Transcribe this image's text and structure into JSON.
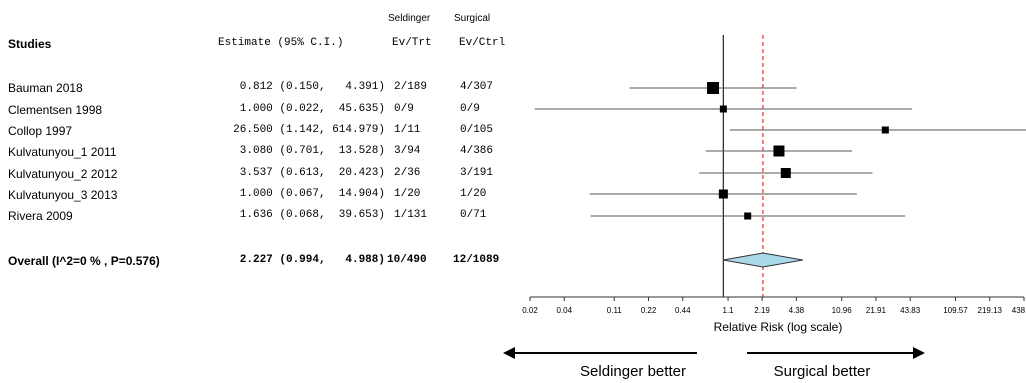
{
  "headers": {
    "group_trt": "Seldinger",
    "group_ctrl": "Surgical",
    "studies": "Studies",
    "estimate": "Estimate (95% C.I.)",
    "ev_trt": "Ev/Trt",
    "ev_ctrl": "Ev/Ctrl"
  },
  "rows": [
    {
      "study": "Bauman 2018",
      "estimate": "0.812 (0.150,   4.391)",
      "ev_trt": "2/189",
      "ev_ctrl": "4/307"
    },
    {
      "study": "Clementsen 1998",
      "estimate": "1.000 (0.022,  45.635)",
      "ev_trt": "0/9",
      "ev_ctrl": "0/9"
    },
    {
      "study": "Collop 1997",
      "estimate": "26.500 (1.142, 614.979)",
      "ev_trt": "1/11",
      "ev_ctrl": "0/105"
    },
    {
      "study": "Kulvatunyou_1 2011",
      "estimate": "3.080 (0.701,  13.528)",
      "ev_trt": "3/94",
      "ev_ctrl": "4/386"
    },
    {
      "study": "Kulvatunyou_2 2012",
      "estimate": "3.537 (0.613,  20.423)",
      "ev_trt": "2/36",
      "ev_ctrl": "3/191"
    },
    {
      "study": "Kulvatunyou_3 2013",
      "estimate": "1.000 (0.067,  14.904)",
      "ev_trt": "1/20",
      "ev_ctrl": "1/20"
    },
    {
      "study": "Rivera 2009",
      "estimate": "1.636 (0.068,  39.653)",
      "ev_trt": "1/131",
      "ev_ctrl": "0/71"
    }
  ],
  "overall": {
    "study": "Overall (I^2=0 % , P=0.576)",
    "estimate": "2.227 (0.994,   4.988)",
    "ev_trt": "10/490",
    "ev_ctrl": "12/1089"
  },
  "direction": {
    "left_label": "Seldinger better",
    "right_label": "Surgical better"
  },
  "colors": {
    "diamond_fill": "#a9d8e8",
    "reference_dashed": "#e03030",
    "marker": "#000000",
    "line": "#555555"
  },
  "chart_data": {
    "type": "forest",
    "xlabel": "Relative Risk (log scale)",
    "x_scale": "log",
    "xlim": [
      0.02,
      438.26
    ],
    "ticks": [
      0.02,
      0.04,
      0.11,
      0.22,
      0.44,
      1.1,
      2.19,
      4.38,
      10.96,
      21.91,
      43.83,
      109.57,
      219.13,
      438.26
    ],
    "tick_labels": [
      "0.02",
      "0.04",
      "0.11",
      "0.22",
      "0.44",
      "1.1",
      "2.19",
      "4.38",
      "10.96",
      "21.91",
      "43.83",
      "109.57",
      "219.13",
      "438.26"
    ],
    "null_line": 1,
    "pooled_line": 2.227,
    "studies": [
      {
        "name": "Bauman 2018",
        "estimate": 0.812,
        "lower": 0.15,
        "upper": 4.391,
        "weight": 12
      },
      {
        "name": "Clementsen 1998",
        "estimate": 1.0,
        "lower": 0.022,
        "upper": 45.635,
        "weight": 7
      },
      {
        "name": "Collop 1997",
        "estimate": 26.5,
        "lower": 1.142,
        "upper": 614.979,
        "weight": 7
      },
      {
        "name": "Kulvatunyou_1 2011",
        "estimate": 3.08,
        "lower": 0.701,
        "upper": 13.528,
        "weight": 11
      },
      {
        "name": "Kulvatunyou_2 2012",
        "estimate": 3.537,
        "lower": 0.613,
        "upper": 20.423,
        "weight": 10
      },
      {
        "name": "Kulvatunyou_3 2013",
        "estimate": 1.0,
        "lower": 0.067,
        "upper": 14.904,
        "weight": 9
      },
      {
        "name": "Rivera 2009",
        "estimate": 1.636,
        "lower": 0.068,
        "upper": 39.653,
        "weight": 7
      }
    ],
    "pooled": {
      "estimate": 2.227,
      "lower": 0.994,
      "upper": 4.988
    }
  }
}
